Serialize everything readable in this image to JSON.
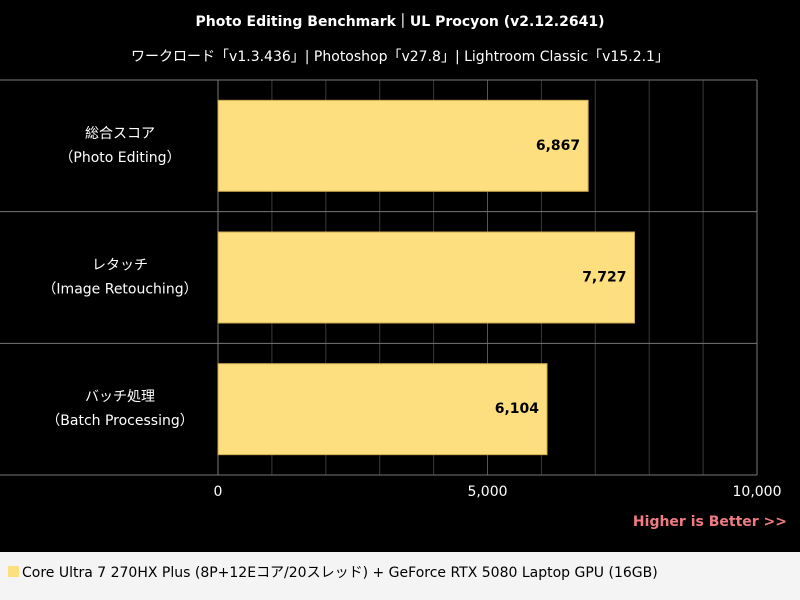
{
  "chart_data": {
    "type": "hbar",
    "title": "Photo Editing Benchmark｜UL Procyon (v2.12.2641)",
    "subtitle": "ワークロード「v1.3.436」| Photoshop「v27.8」| Lightroom Classic「v15.2.1」",
    "categories": [
      [
        "総合スコア",
        "（Photo Editing）"
      ],
      [
        "レタッチ",
        "（Image Retouching）"
      ],
      [
        "バッチ処理",
        "（Batch Processing）"
      ]
    ],
    "series": [
      {
        "name": "Core Ultra 7 270HX Plus (8P+12Eコア/20スレッド) + GeForce RTX 5080 Laptop GPU (16GB)",
        "color": "#fddf80",
        "values": [
          6867,
          7727,
          6104
        ],
        "value_labels": [
          "6,867",
          "7,727",
          "6,104"
        ]
      }
    ],
    "xlim": [
      0,
      10000
    ],
    "xticks": [
      0,
      {
        "value": 5000,
        "label": "5,000"
      },
      {
        "value": 10000,
        "label": "10,000"
      }
    ],
    "minor_xticks": [
      1000,
      2000,
      3000,
      4000,
      6000,
      7000,
      8000,
      9000
    ],
    "grid": true,
    "annotation": "Higher is Better >>"
  }
}
